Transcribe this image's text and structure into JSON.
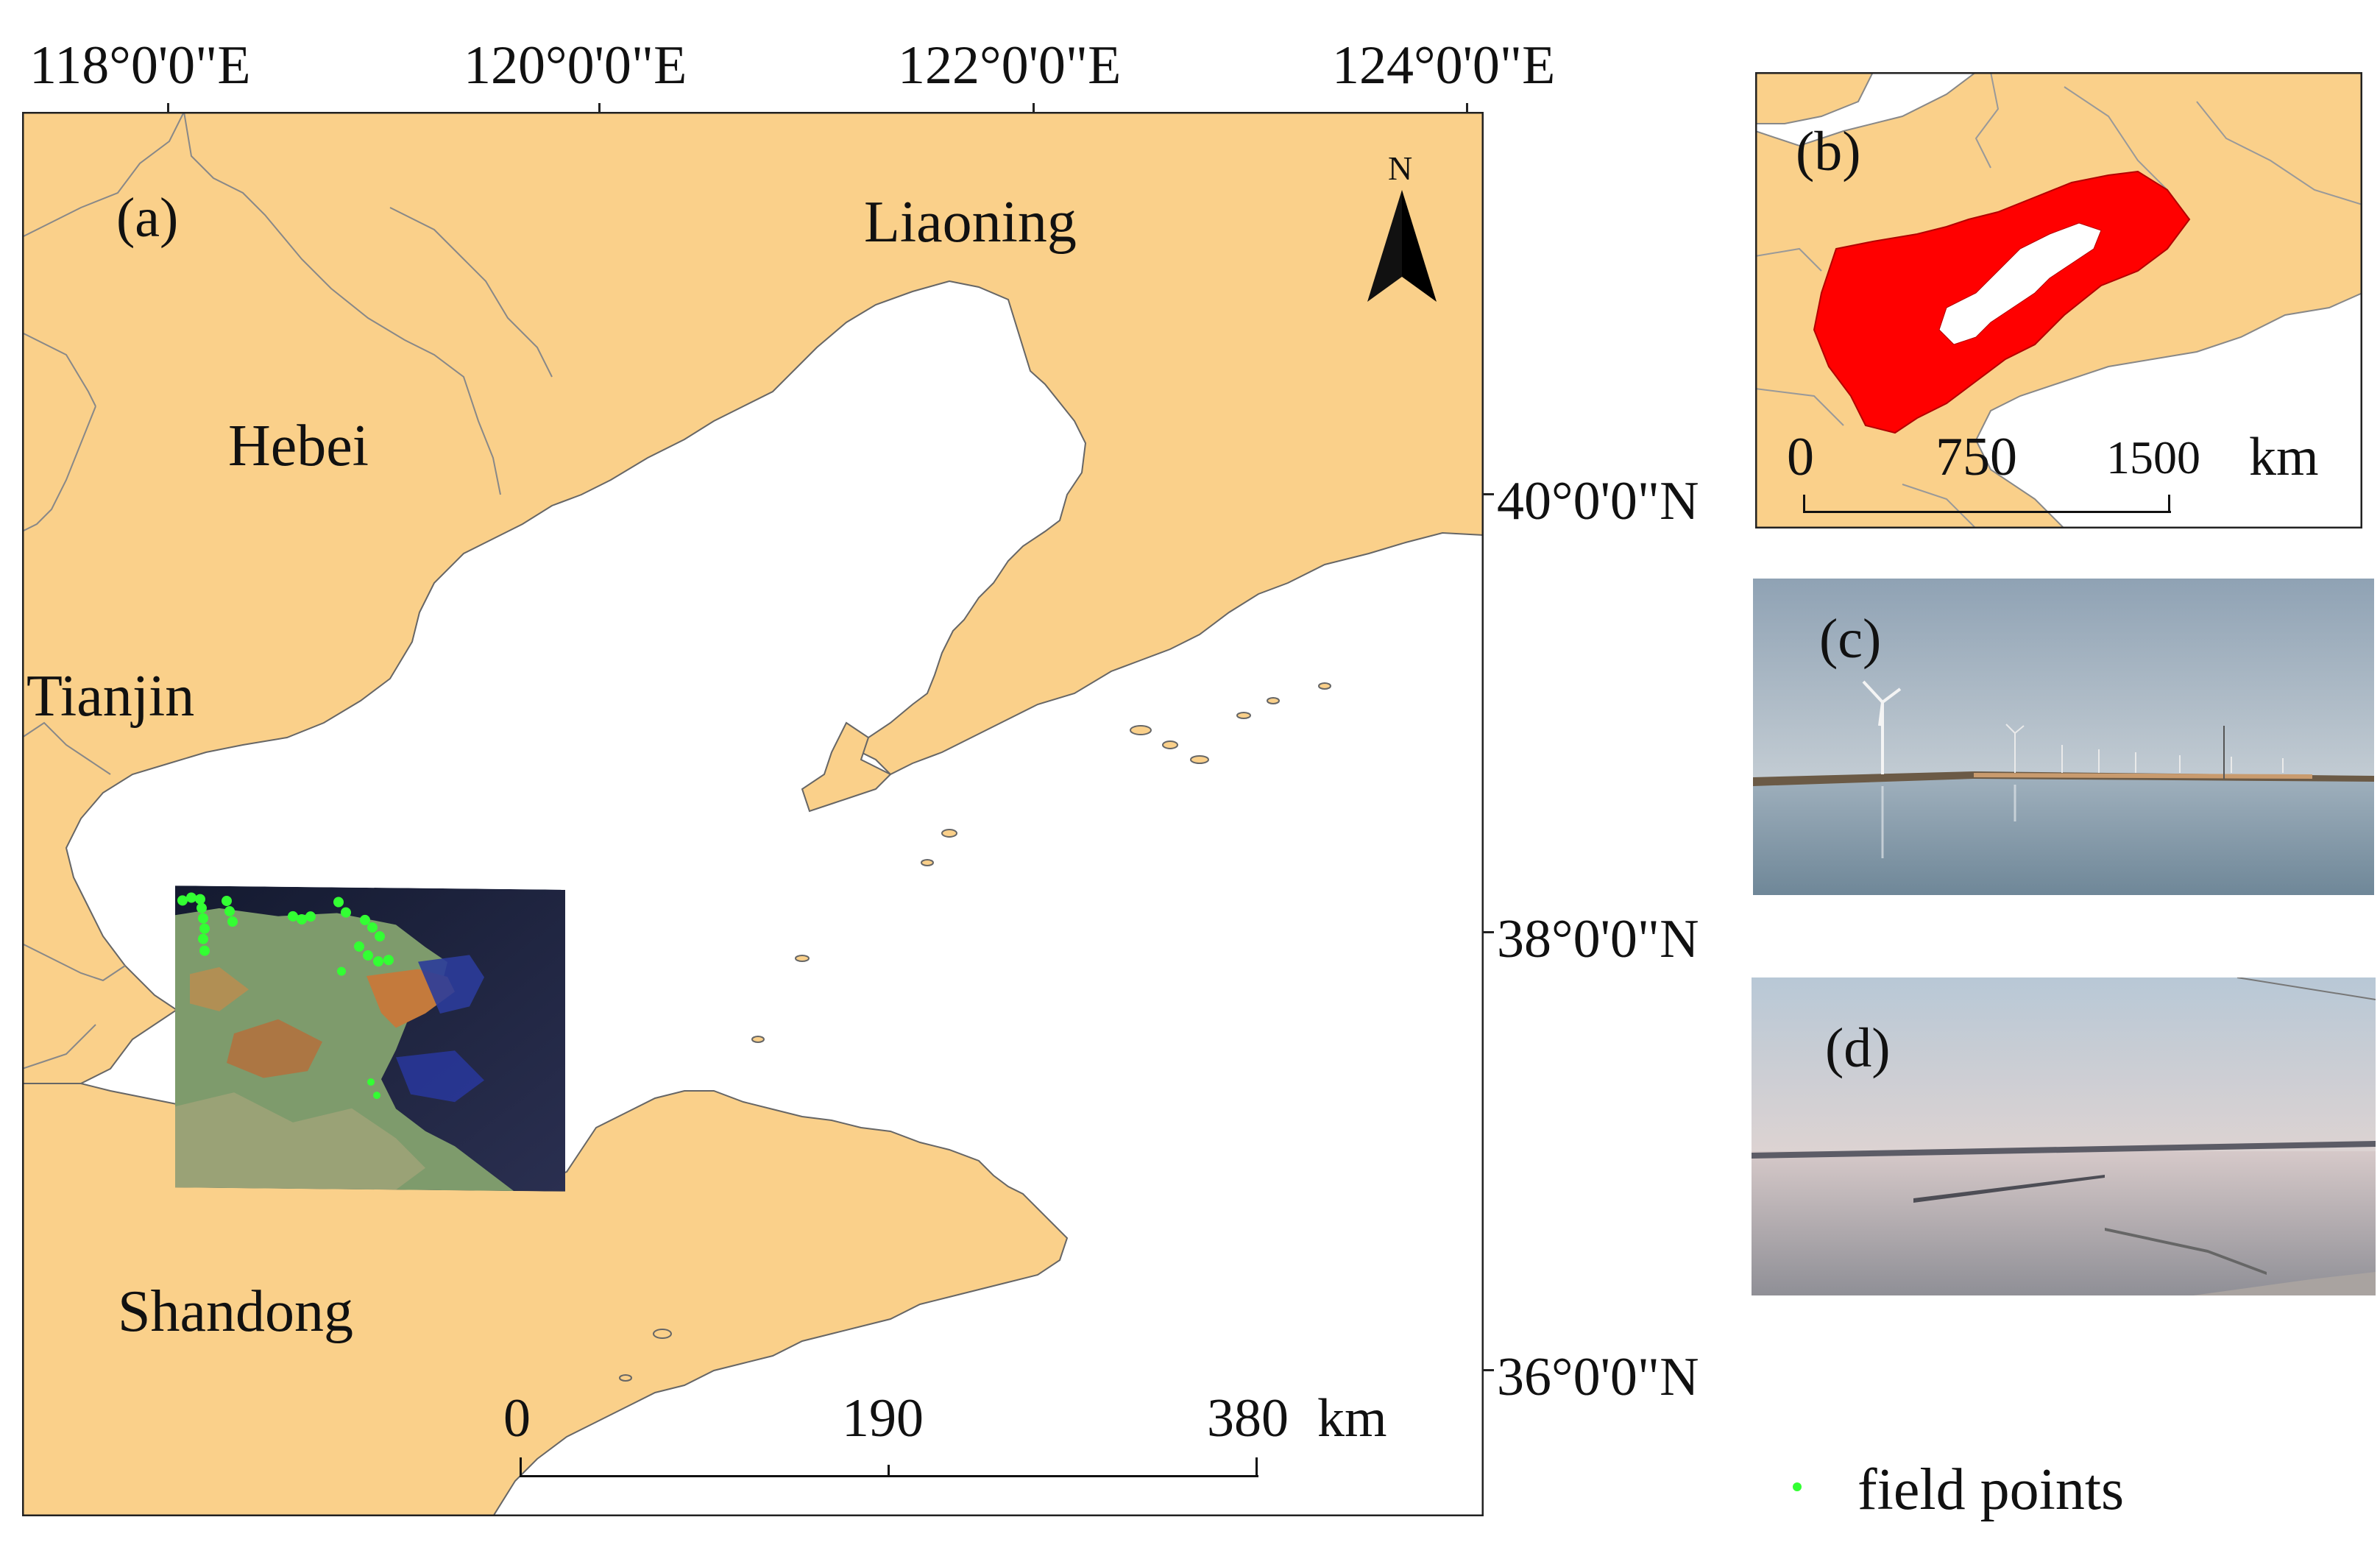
{
  "panel_a": {
    "label": "(a)",
    "longitude_ticks": [
      "118°0'0\"E",
      "120°0'0\"E",
      "122°0'0\"E",
      "124°0'0\"E"
    ],
    "latitude_ticks": [
      "40°0'0\"N",
      "38°0'0\"N",
      "36°0'0\"N"
    ],
    "regions": {
      "liaoning": "Liaoning",
      "hebei": "Hebei",
      "tianjin": "Tianjin",
      "shandong": "Shandong"
    },
    "north_arrow": "N",
    "scale_bar": {
      "zero": "0",
      "mid": "190",
      "end": "380",
      "unit": "km"
    }
  },
  "panel_b": {
    "label": "(b)",
    "scale_bar": {
      "zero": "0",
      "mid": "750",
      "end": "1500",
      "unit": "km"
    }
  },
  "panel_c": {
    "label": "(c)"
  },
  "panel_d": {
    "label": "(d)"
  },
  "legend": {
    "field_points_label": "field points",
    "field_points_color": "#33ff33"
  },
  "colors": {
    "land": "#FAD08A",
    "water": "#FFFFFF",
    "study_area": "#FF0000",
    "border": "#888888"
  }
}
